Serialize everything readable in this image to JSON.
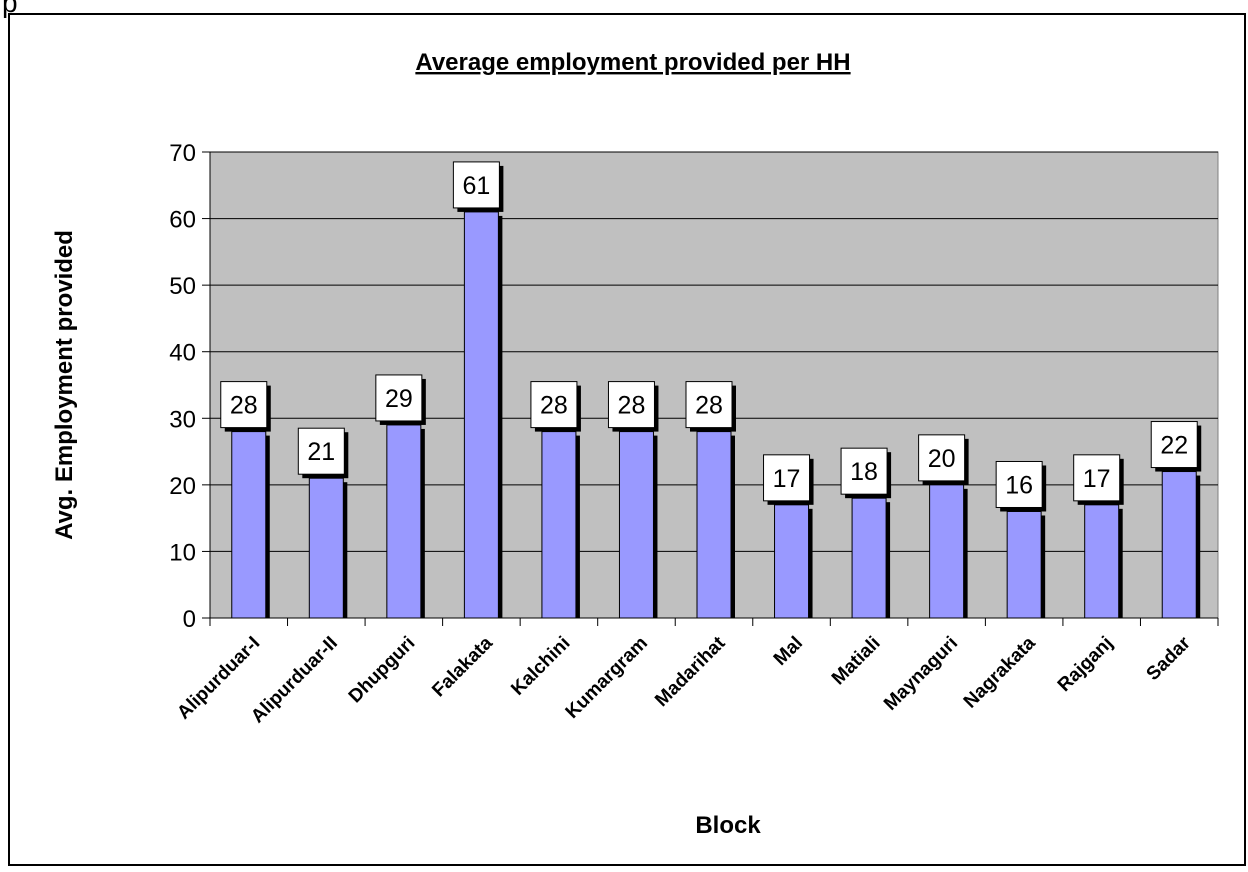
{
  "chart_data": {
    "type": "bar",
    "title": "Average employment provided per HH",
    "xlabel": "Block",
    "ylabel": "Avg. Employment provided",
    "categories": [
      "Alipurduar-I",
      "Alipurduar-II",
      "Dhupguri",
      "Falakata",
      "Kalchini",
      "Kumargram",
      "Madarihat",
      "Mal",
      "Matiali",
      "Maynaguri",
      "Nagrakata",
      "Rajganj",
      "Sadar"
    ],
    "values": [
      28,
      21,
      29,
      61,
      28,
      28,
      28,
      17,
      18,
      20,
      16,
      17,
      22
    ],
    "yticks": [
      0,
      10,
      20,
      30,
      40,
      50,
      60,
      70
    ],
    "ylim": [
      0,
      70
    ],
    "grid": true,
    "legend": "none",
    "colors": {
      "bar": "#9999ff",
      "plot_bg": "#c0c0c0",
      "axis": "#000000",
      "label_bg": "#ffffff"
    }
  }
}
